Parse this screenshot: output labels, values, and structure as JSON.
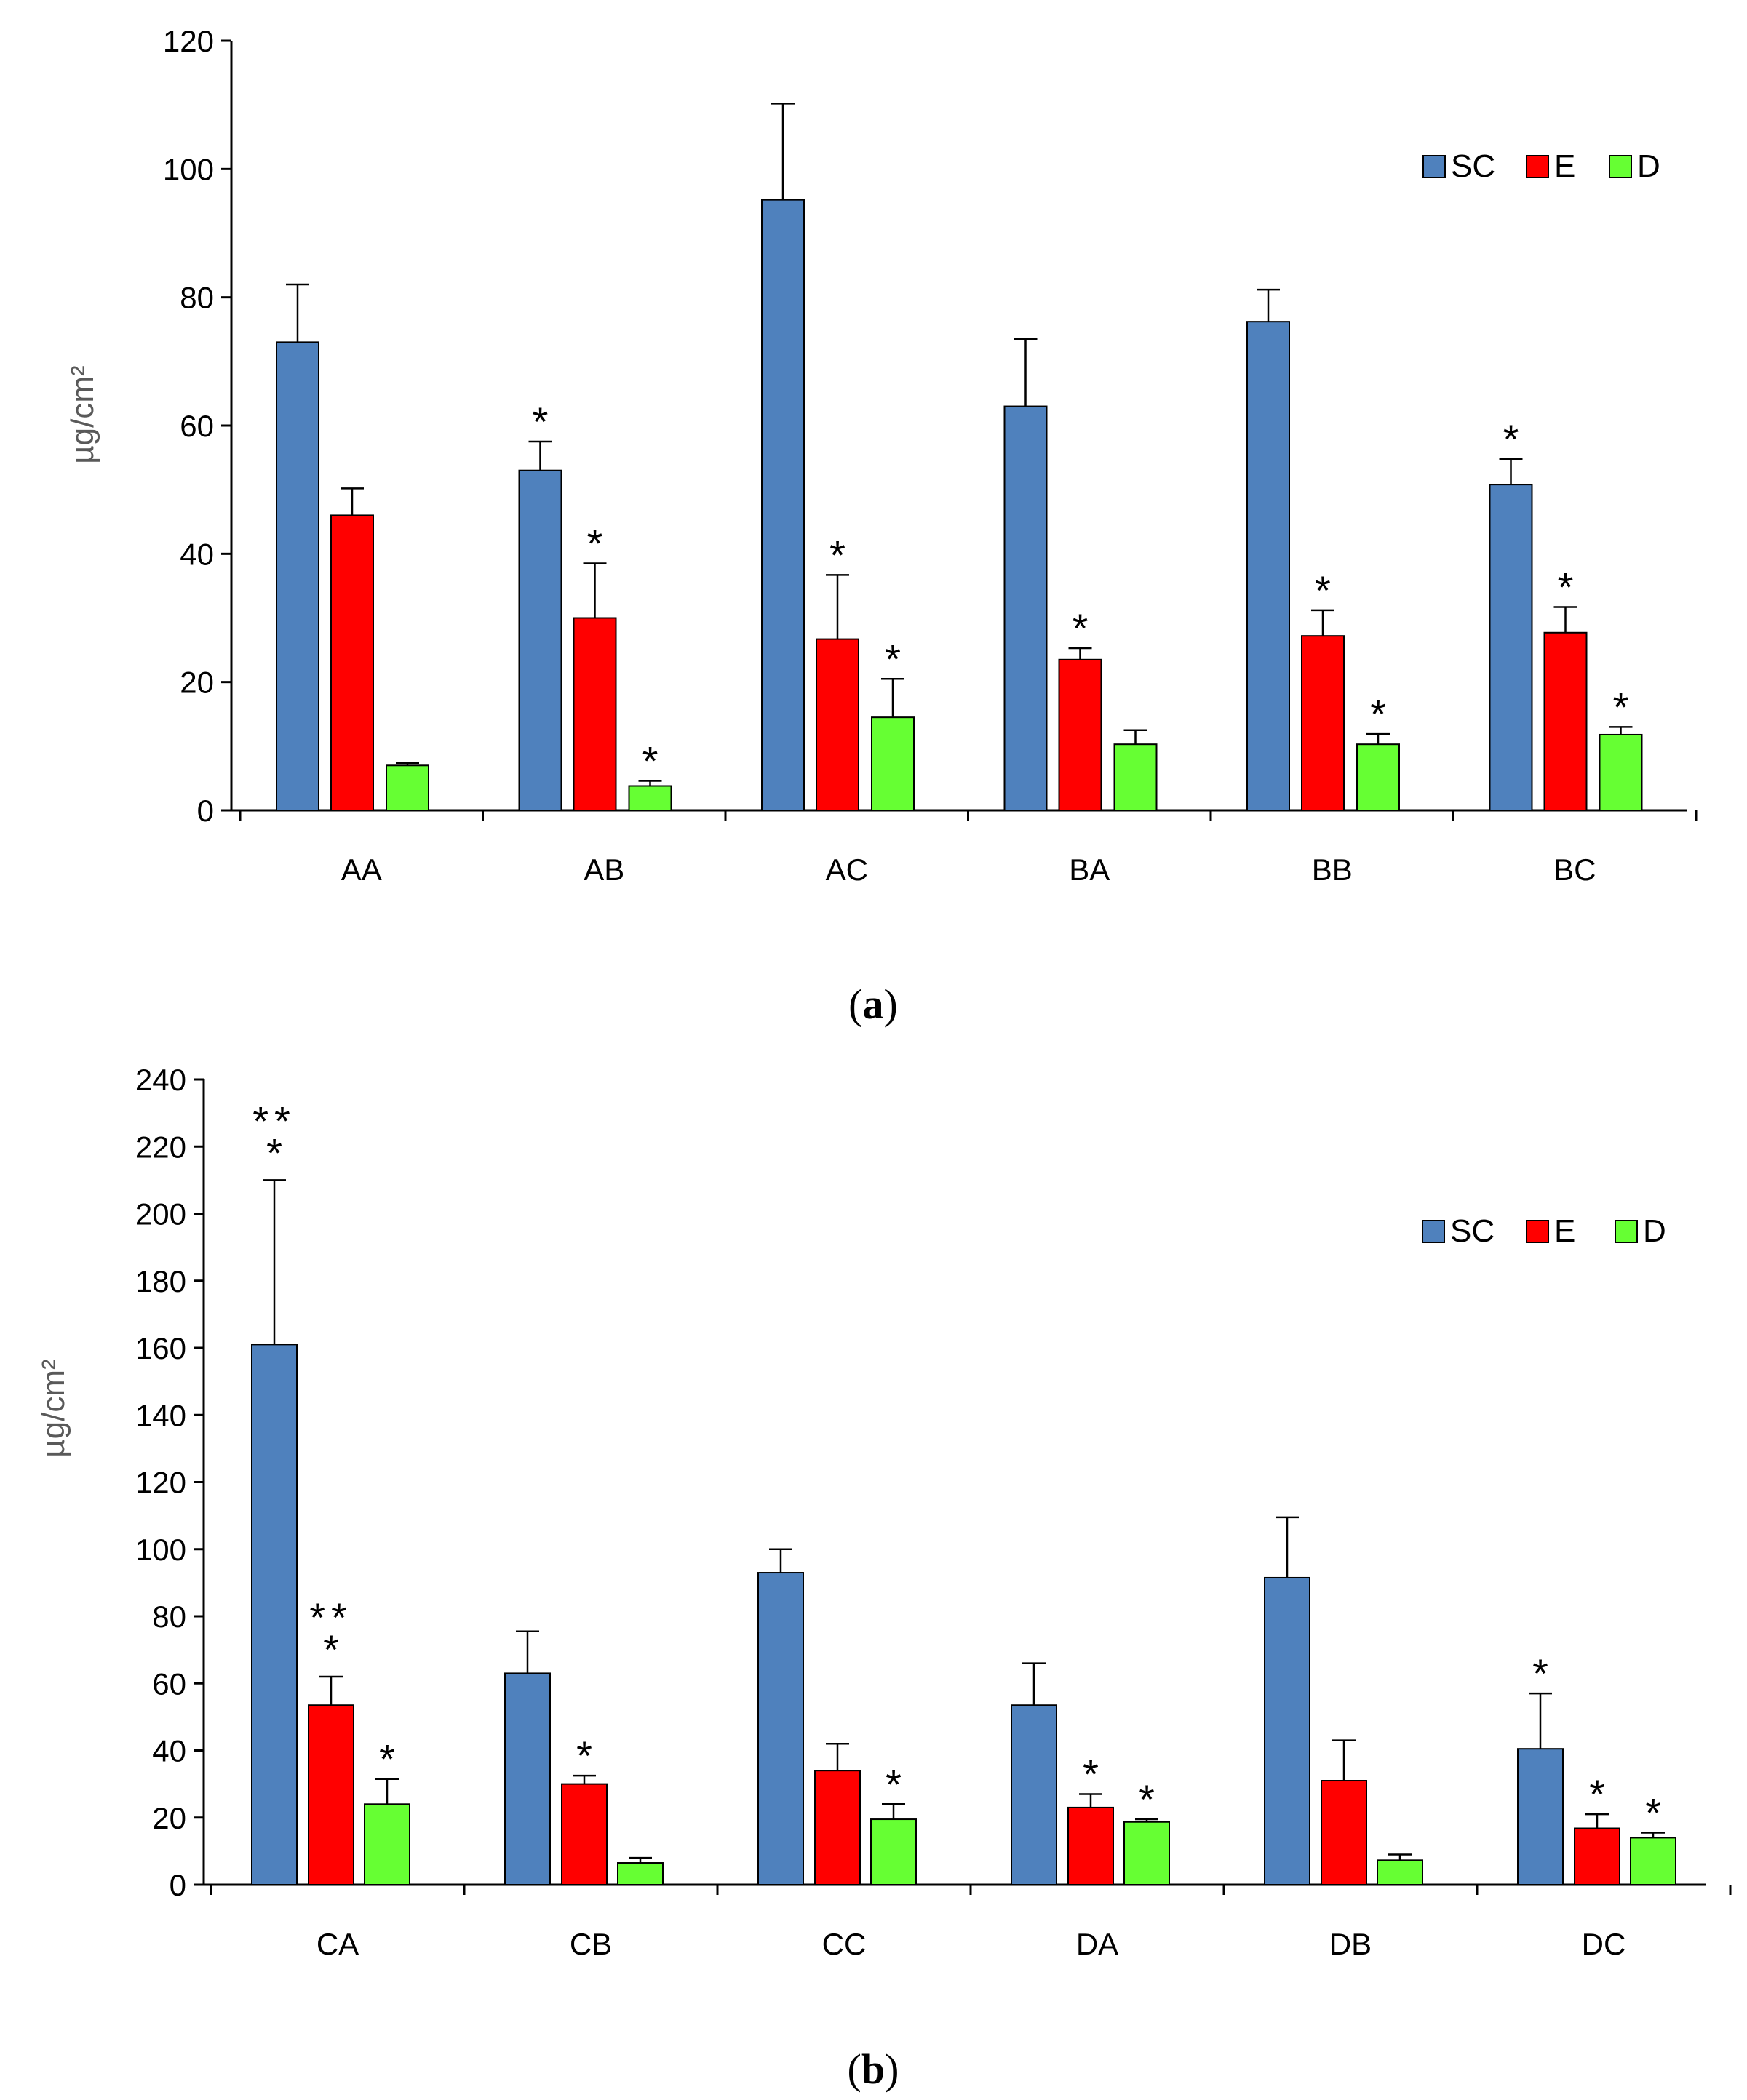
{
  "chart_data": [
    {
      "type": "bar",
      "panel_label": "a",
      "ylabel": "µg/cm²",
      "ylim": [
        0,
        120
      ],
      "yticks": [
        0,
        20,
        40,
        60,
        80,
        100,
        120
      ],
      "legend_position": "top-right",
      "categories": [
        "AA",
        "AB",
        "AC",
        "BA",
        "BB",
        "BC"
      ],
      "series": [
        {
          "name": "SC",
          "color": "#4F81BD",
          "values": [
            73,
            53,
            95.2,
            63,
            76.2,
            50.8
          ],
          "errors": [
            9,
            4.5,
            15,
            10.5,
            5,
            4
          ],
          "stars": [
            "",
            "*",
            "",
            "",
            "",
            "*"
          ]
        },
        {
          "name": "E",
          "color": "#FF0000",
          "values": [
            46,
            30,
            26.7,
            23.5,
            27.2,
            27.7
          ],
          "errors": [
            4.2,
            8.5,
            10,
            1.8,
            4,
            4
          ],
          "stars": [
            "",
            "*",
            "*",
            "*",
            "*",
            "*"
          ]
        },
        {
          "name": "D",
          "color": "#66FF33",
          "values": [
            7,
            3.8,
            14.5,
            10.3,
            10.3,
            11.8
          ],
          "errors": [
            0.4,
            0.8,
            6,
            2.2,
            1.6,
            1.2
          ],
          "stars": [
            "",
            "*",
            "*",
            "",
            "*",
            "*"
          ]
        }
      ]
    },
    {
      "type": "bar",
      "panel_label": "b",
      "ylabel": "µg/cm²",
      "ylim": [
        0,
        240
      ],
      "yticks": [
        0,
        20,
        40,
        60,
        80,
        100,
        120,
        140,
        160,
        180,
        200,
        220,
        240
      ],
      "legend_position": "top-right",
      "categories": [
        "CA",
        "CB",
        "CC",
        "DA",
        "DB",
        "DC"
      ],
      "series": [
        {
          "name": "SC",
          "color": "#4F81BD",
          "values": [
            161,
            63,
            93,
            53.5,
            91.5,
            40.5
          ],
          "errors": [
            49,
            12.5,
            7,
            12.5,
            18,
            16.5
          ],
          "stars": [
            "***",
            "",
            "",
            "",
            "",
            "*"
          ]
        },
        {
          "name": "E",
          "color": "#FF0000",
          "values": [
            53.5,
            30,
            34,
            23,
            31,
            16.8
          ],
          "errors": [
            8.5,
            2.5,
            8,
            4,
            12,
            4.2
          ],
          "stars": [
            "***",
            "*",
            "",
            "*",
            "",
            "*"
          ]
        },
        {
          "name": "D",
          "color": "#66FF33",
          "values": [
            24,
            6.5,
            19.5,
            18.7,
            7.3,
            14
          ],
          "errors": [
            7.5,
            1.5,
            4.5,
            0.8,
            1.7,
            1.5
          ],
          "stars": [
            "*",
            "",
            "*",
            "*",
            "",
            "*"
          ]
        }
      ]
    }
  ]
}
